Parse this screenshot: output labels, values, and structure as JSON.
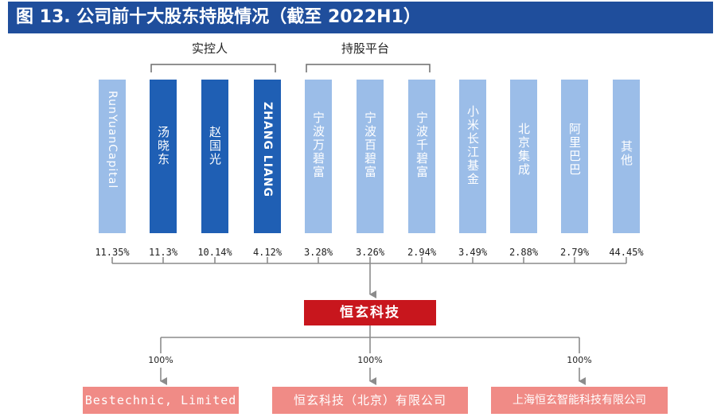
{
  "title": "图 13. 公司前十大股东持股情况（截至 2022H1）",
  "groups": {
    "control": "实控人",
    "platform": "持股平台"
  },
  "colors": {
    "header": "#1f4e9c",
    "dark_bar": "#1f5fb4",
    "light_bar": "#9bbde8",
    "company": "#c8161d",
    "subsidiary": "#f08b86",
    "line": "#8c8c8c"
  },
  "shareholders": [
    {
      "name": "RunYuanCapital",
      "pct": "11.35%"
    },
    {
      "name": "汤晓东",
      "pct": "11.3%"
    },
    {
      "name": "赵国光",
      "pct": "10.14%"
    },
    {
      "name": "ZHANG LIANG",
      "pct": "4.12%"
    },
    {
      "name": "宁波万碧富",
      "pct": "3.28%"
    },
    {
      "name": "宁波百碧富",
      "pct": "3.26%"
    },
    {
      "name": "宁波千碧富",
      "pct": "2.94%"
    },
    {
      "name": "小米长江基金",
      "pct": "3.49%"
    },
    {
      "name": "北京集成",
      "pct": "2.88%"
    },
    {
      "name": "阿里巴巴",
      "pct": "2.79%"
    },
    {
      "name": "其他",
      "pct": "44.45%"
    }
  ],
  "company": "恒玄科技",
  "subsidiaries": [
    {
      "name": "Bestechnic, Limited",
      "pct": "100%"
    },
    {
      "name": "恒玄科技（北京）有限公司",
      "pct": "100%"
    },
    {
      "name": "上海恒玄智能科技有限公司",
      "pct": "100%"
    }
  ]
}
